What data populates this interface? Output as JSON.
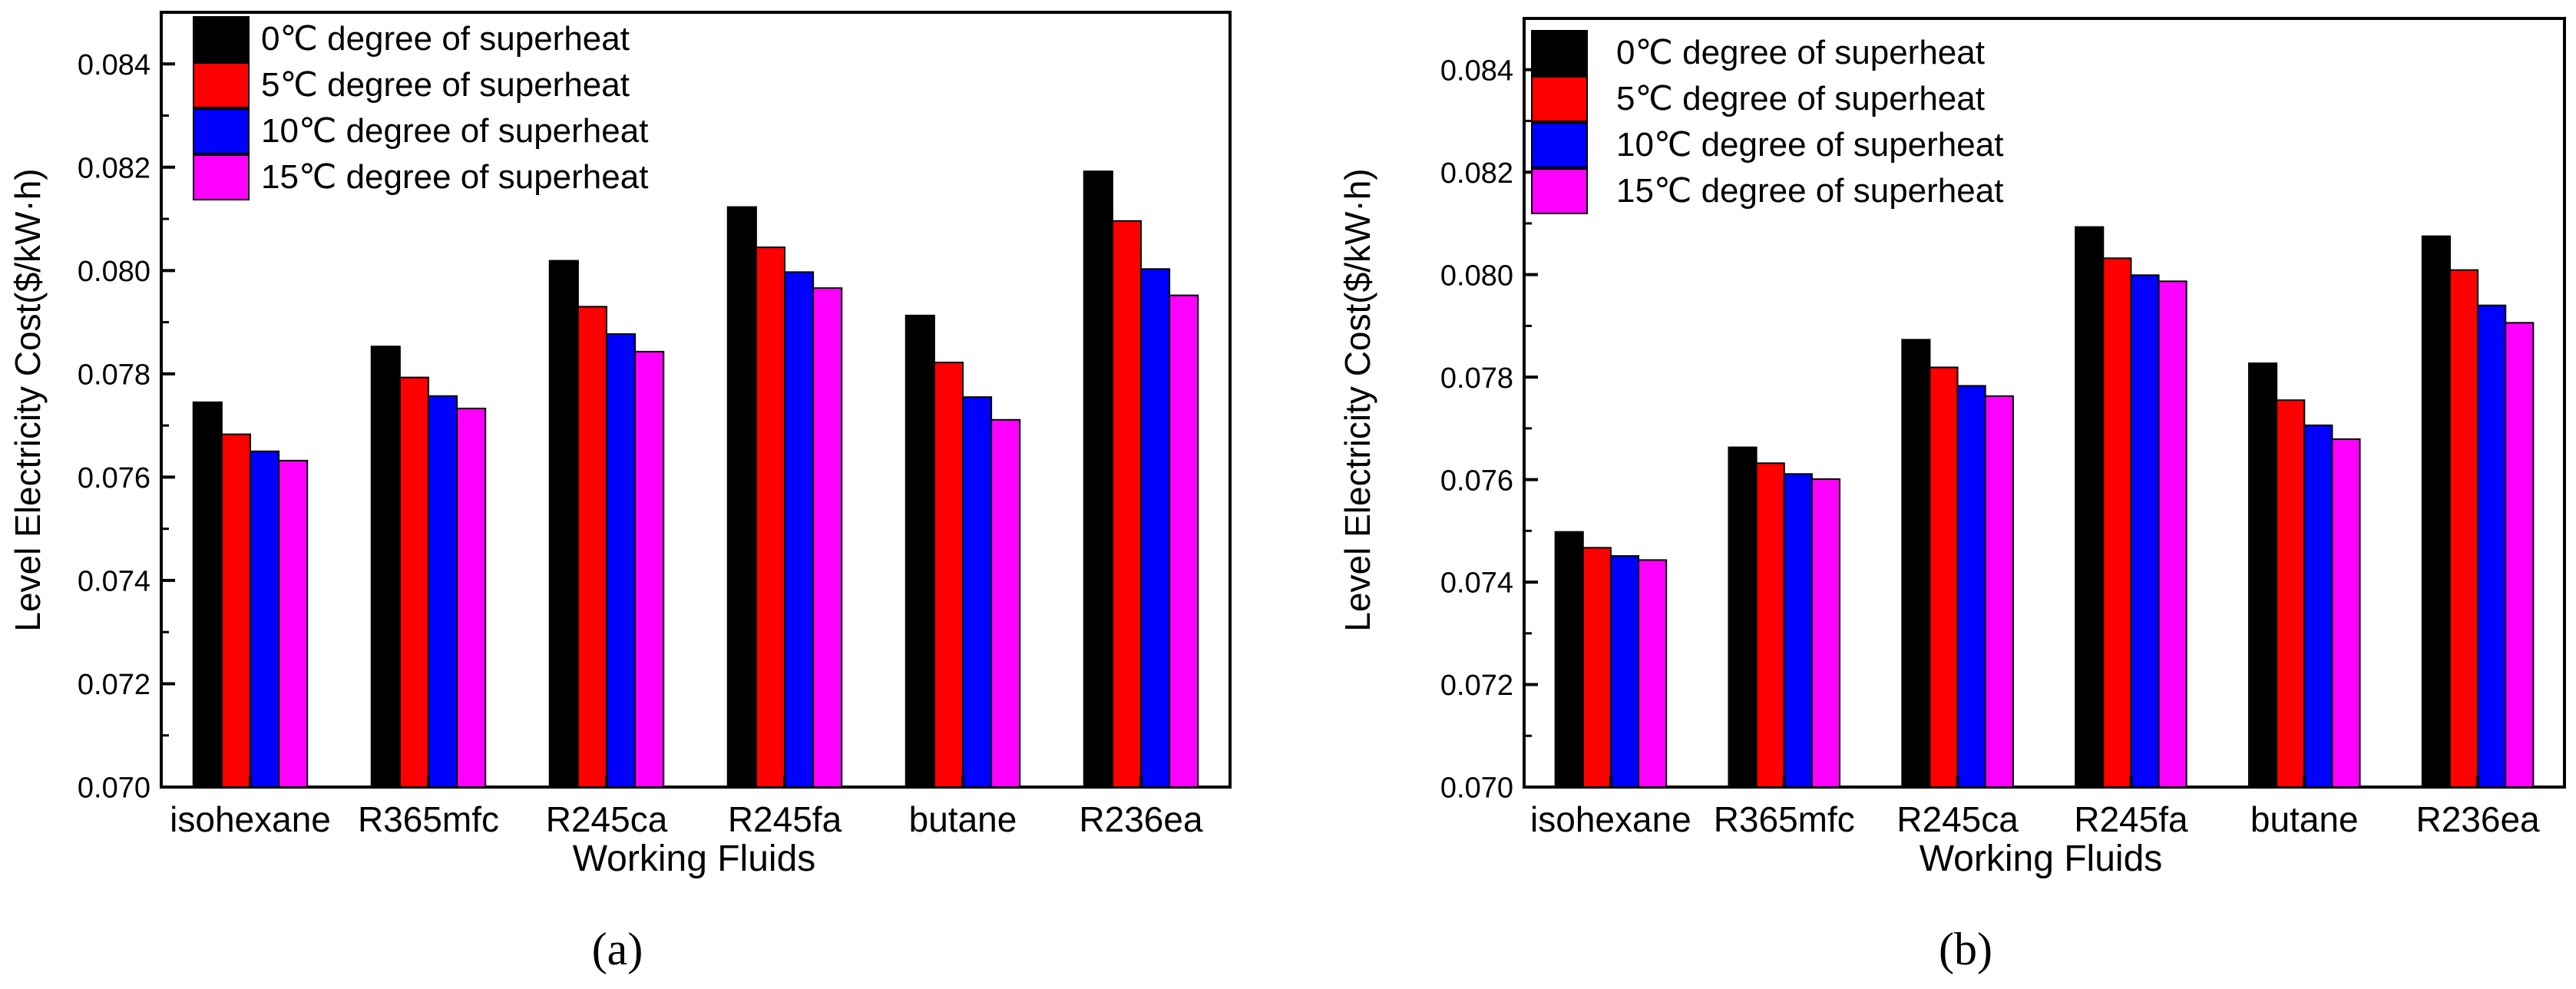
{
  "chart_data": [
    {
      "type": "bar",
      "panel_label": "(a)",
      "title": "",
      "xlabel": "Working Fluids",
      "ylabel": "Level Electricity Cost($/kW·h)",
      "ylim": [
        0.07,
        0.085
      ],
      "yticks": [
        "0.070",
        "0.072",
        "0.074",
        "0.076",
        "0.078",
        "0.080",
        "0.082",
        "0.084"
      ],
      "grid": false,
      "legend_position": "top-left",
      "categories": [
        "isohexane",
        "R365mfc",
        "R245ca",
        "R245fa",
        "butane",
        "R236ea"
      ],
      "series": [
        {
          "name": "0℃ degree of superheat",
          "color": "#000000",
          "values": [
            0.07745,
            0.07853,
            0.08019,
            0.08123,
            0.07913,
            0.08192
          ]
        },
        {
          "name": "5℃ degree of superheat",
          "color": "#ff0000",
          "values": [
            0.07683,
            0.07793,
            0.0793,
            0.08045,
            0.07822,
            0.08096
          ]
        },
        {
          "name": "10℃ degree of superheat",
          "color": "#0000ff",
          "values": [
            0.0765,
            0.07757,
            0.07877,
            0.07997,
            0.07755,
            0.08003
          ]
        },
        {
          "name": "15℃ degree of superheat",
          "color": "#ff00ff",
          "values": [
            0.07632,
            0.07733,
            0.07843,
            0.07966,
            0.07711,
            0.07952
          ]
        }
      ]
    },
    {
      "type": "bar",
      "panel_label": "(b)",
      "title": "",
      "xlabel": "Working Fluids",
      "ylabel": "Level Electricity Cost($/kW·h)",
      "ylim": [
        0.07,
        0.085
      ],
      "yticks": [
        "0.070",
        "0.072",
        "0.074",
        "0.076",
        "0.078",
        "0.080",
        "0.082",
        "0.084"
      ],
      "grid": false,
      "legend_position": "top-left",
      "categories": [
        "isohexane",
        "R365mfc",
        "R245ca",
        "R245fa",
        "butane",
        "R236ea"
      ],
      "series": [
        {
          "name": "0℃ degree of superheat",
          "color": "#000000",
          "values": [
            0.07498,
            0.07663,
            0.07873,
            0.08093,
            0.07827,
            0.08075
          ]
        },
        {
          "name": "5℃ degree of superheat",
          "color": "#ff0000",
          "values": [
            0.07467,
            0.07632,
            0.07819,
            0.08032,
            0.07755,
            0.08009
          ]
        },
        {
          "name": "10℃ degree of superheat",
          "color": "#0000ff",
          "values": [
            0.07451,
            0.07611,
            0.07783,
            0.07999,
            0.07706,
            0.0794
          ]
        },
        {
          "name": "15℃ degree of superheat",
          "color": "#ff00ff",
          "values": [
            0.07443,
            0.07601,
            0.07763,
            0.07987,
            0.07679,
            0.07906
          ]
        }
      ]
    }
  ]
}
